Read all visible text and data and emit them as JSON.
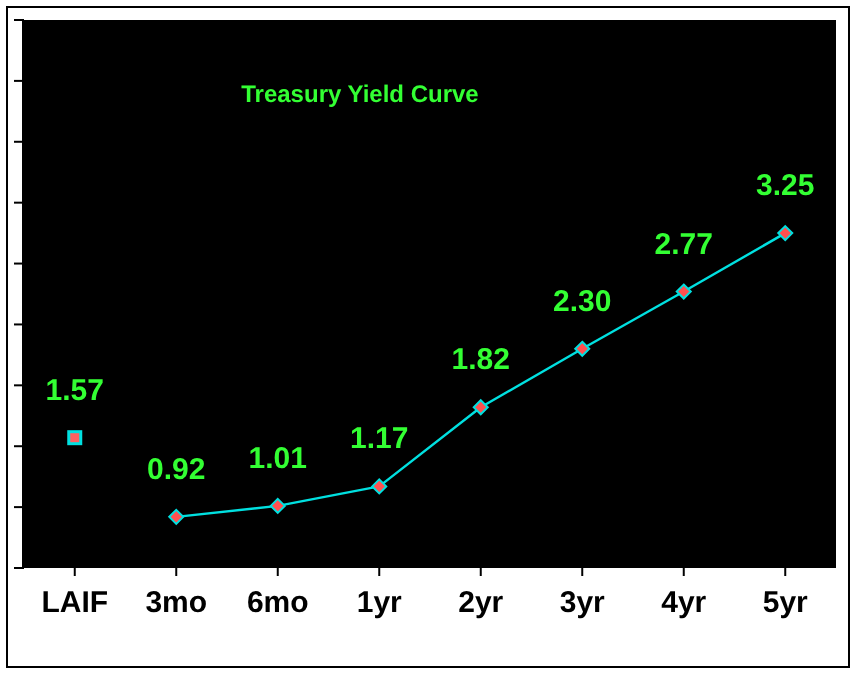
{
  "chart_data": {
    "type": "line",
    "title": "Treasury Yield Curve",
    "categories": [
      "LAIF",
      "3mo",
      "6mo",
      "1yr",
      "2yr",
      "3yr",
      "4yr",
      "5yr"
    ],
    "series": [
      {
        "type": "scatter",
        "color": "#00e0e0",
        "marker": "square",
        "values": [
          1.57,
          null,
          null,
          null,
          null,
          null,
          null,
          null
        ],
        "value_labels": [
          "1.57",
          null,
          null,
          null,
          null,
          null,
          null,
          null
        ]
      },
      {
        "color": "#00e0e0",
        "marker": "diamond",
        "values": [
          null,
          0.92,
          1.01,
          1.17,
          1.82,
          2.3,
          2.77,
          3.25
        ],
        "value_labels": [
          null,
          "0.92",
          "1.01",
          "1.17",
          "1.82",
          "2.30",
          "2.77",
          "3.25"
        ]
      }
    ],
    "ylim": [
      0.5,
      5.0
    ],
    "yticks": [
      {
        "value": 0.5,
        "label": null
      },
      {
        "value": 1.0,
        "label": null
      },
      {
        "value": 1.5,
        "label": null
      },
      {
        "value": 2.0,
        "label": null
      },
      {
        "value": 2.5,
        "label": null
      },
      {
        "value": 3.0,
        "label": null
      },
      {
        "value": 3.5,
        "label": null
      },
      {
        "value": 4.0,
        "label": null
      },
      {
        "value": 4.5,
        "label": null
      },
      {
        "value": 5.0,
        "label": null
      }
    ],
    "tick_labels": "x"
  }
}
